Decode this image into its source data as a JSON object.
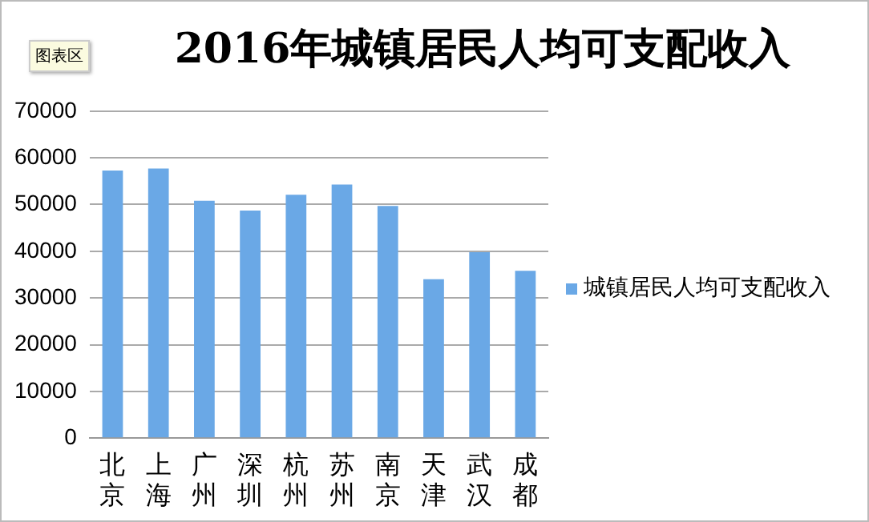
{
  "chart_data": {
    "type": "bar",
    "title": "2016年城镇居民人均可支配收入",
    "annotations": [
      "图表区"
    ],
    "categories": [
      "北京",
      "上海",
      "广州",
      "深圳",
      "杭州",
      "苏州",
      "南京",
      "天津",
      "武汉",
      "成都"
    ],
    "series": [
      {
        "name": "城镇居民人均可支配收入",
        "color": "#6aa8e6",
        "values": [
          57300,
          57700,
          50800,
          48700,
          52100,
          54300,
          49700,
          34000,
          39800,
          35800
        ]
      }
    ],
    "ylim": [
      0,
      70000
    ],
    "yticks": [
      0,
      10000,
      20000,
      30000,
      40000,
      50000,
      60000,
      70000
    ],
    "grid": "y",
    "legend": "right"
  }
}
